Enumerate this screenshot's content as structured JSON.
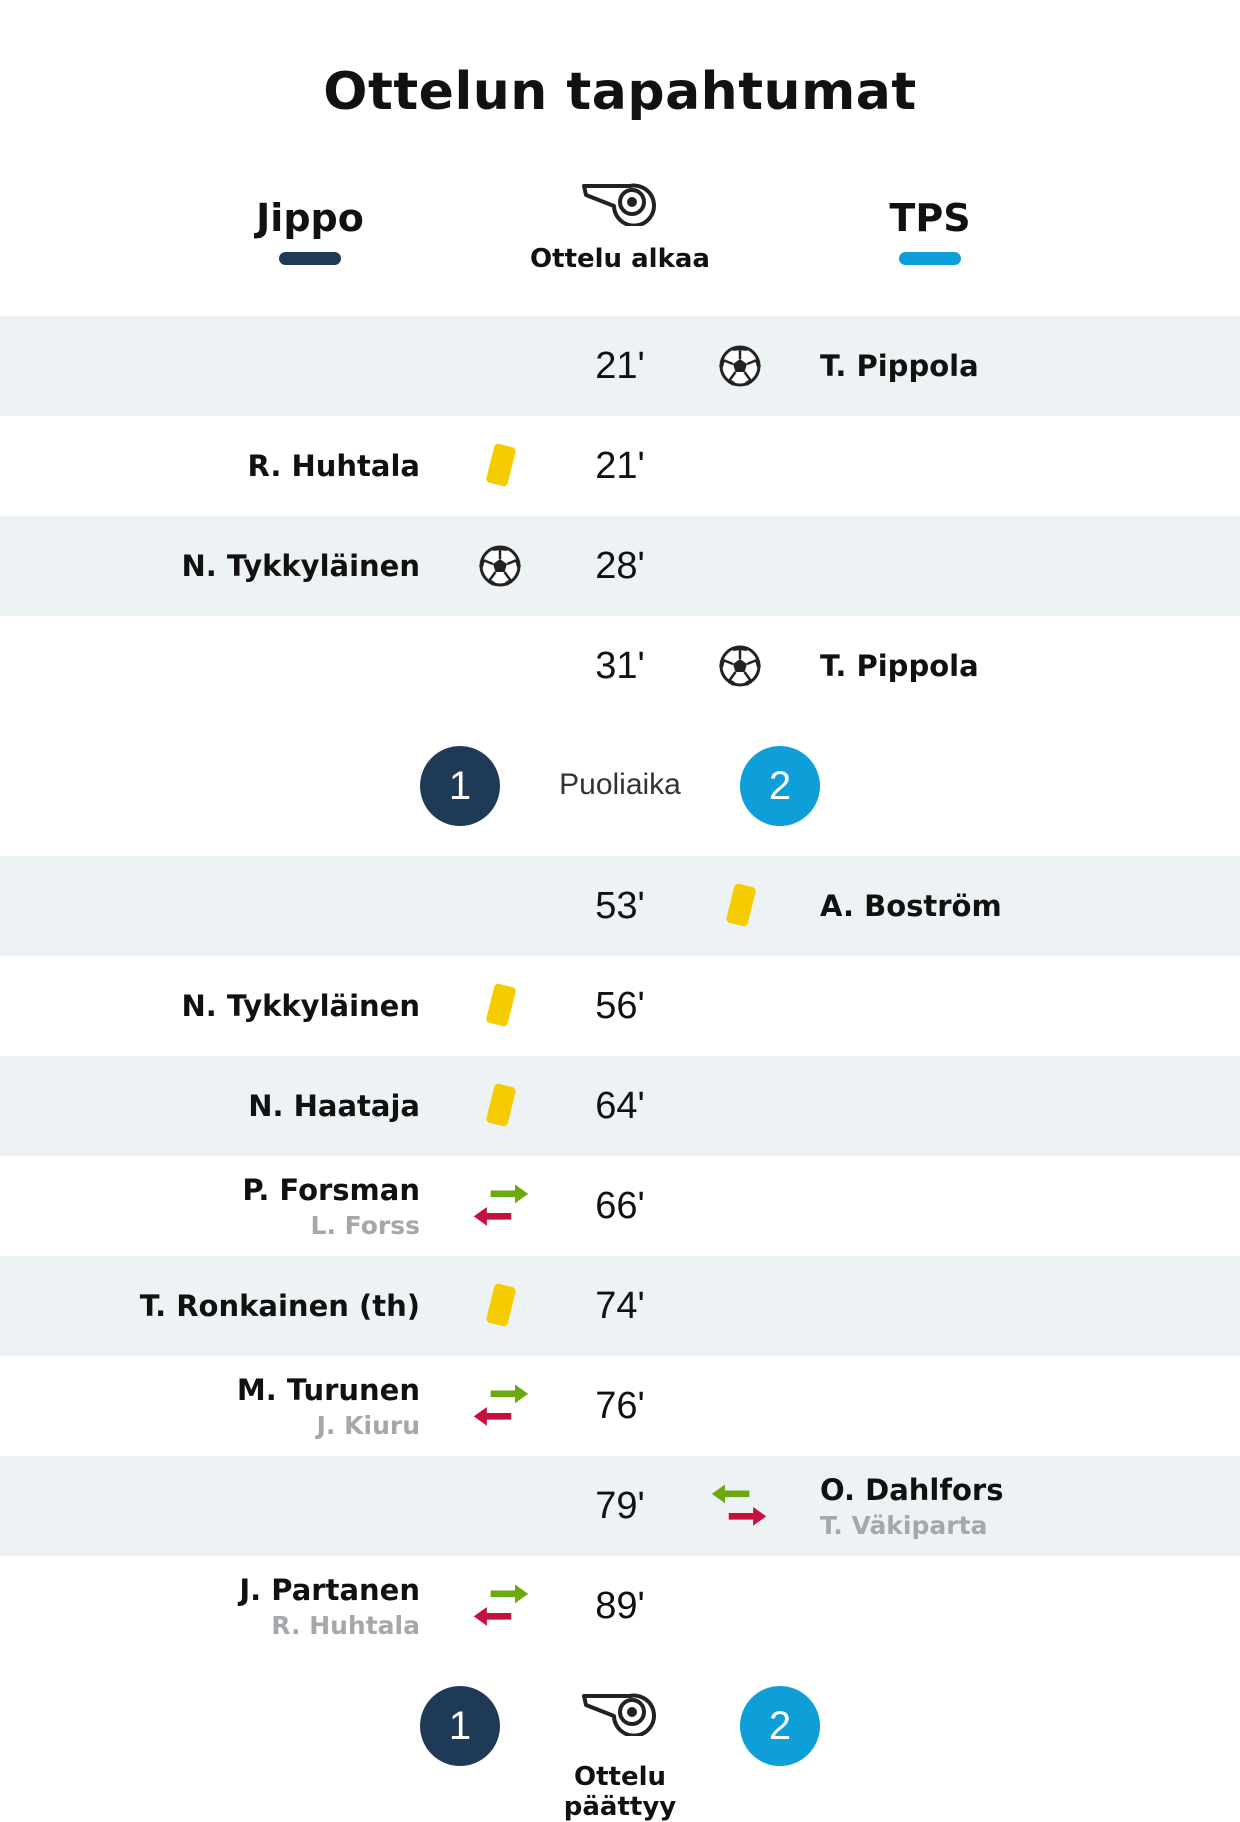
{
  "title": "Ottelun tapahtumat",
  "teams": {
    "home": {
      "name": "Jippo",
      "color": "#1f3a57"
    },
    "away": {
      "name": "TPS",
      "color": "#0e9fd8"
    }
  },
  "start_label": "Ottelu alkaa",
  "halftime": {
    "label": "Puoliaika",
    "home_score": "1",
    "away_score": "2"
  },
  "end": {
    "label": "Ottelu päättyy",
    "home_score": "1",
    "away_score": "2"
  },
  "events": [
    {
      "minute": "21'",
      "side": "away",
      "type": "goal",
      "player": "T. Pippola"
    },
    {
      "minute": "21'",
      "side": "home",
      "type": "yellow-card",
      "player": "R. Huhtala"
    },
    {
      "minute": "28'",
      "side": "home",
      "type": "goal",
      "player": "N. Tykkyläinen"
    },
    {
      "minute": "31'",
      "side": "away",
      "type": "goal",
      "player": "T. Pippola"
    },
    {
      "minute": "53'",
      "side": "away",
      "type": "yellow-card",
      "player": "A. Boström"
    },
    {
      "minute": "56'",
      "side": "home",
      "type": "yellow-card",
      "player": "N. Tykkyläinen"
    },
    {
      "minute": "64'",
      "side": "home",
      "type": "yellow-card",
      "player": "N. Haataja"
    },
    {
      "minute": "66'",
      "side": "home",
      "type": "substitution",
      "player": "P. Forsman",
      "sub": "L. Forss"
    },
    {
      "minute": "74'",
      "side": "home",
      "type": "yellow-card",
      "player": "T. Ronkainen (th)"
    },
    {
      "minute": "76'",
      "side": "home",
      "type": "substitution",
      "player": "M. Turunen",
      "sub": "J. Kiuru"
    },
    {
      "minute": "79'",
      "side": "away",
      "type": "substitution",
      "player": "O. Dahlfors",
      "sub": "T. Väkiparta"
    },
    {
      "minute": "89'",
      "side": "home",
      "type": "substitution",
      "player": "J. Partanen",
      "sub": "R. Huhtala"
    }
  ],
  "icon_colors": {
    "yellow_card": "#f5cc00",
    "sub_in": "#6aaa10",
    "sub_out": "#c8103e"
  }
}
